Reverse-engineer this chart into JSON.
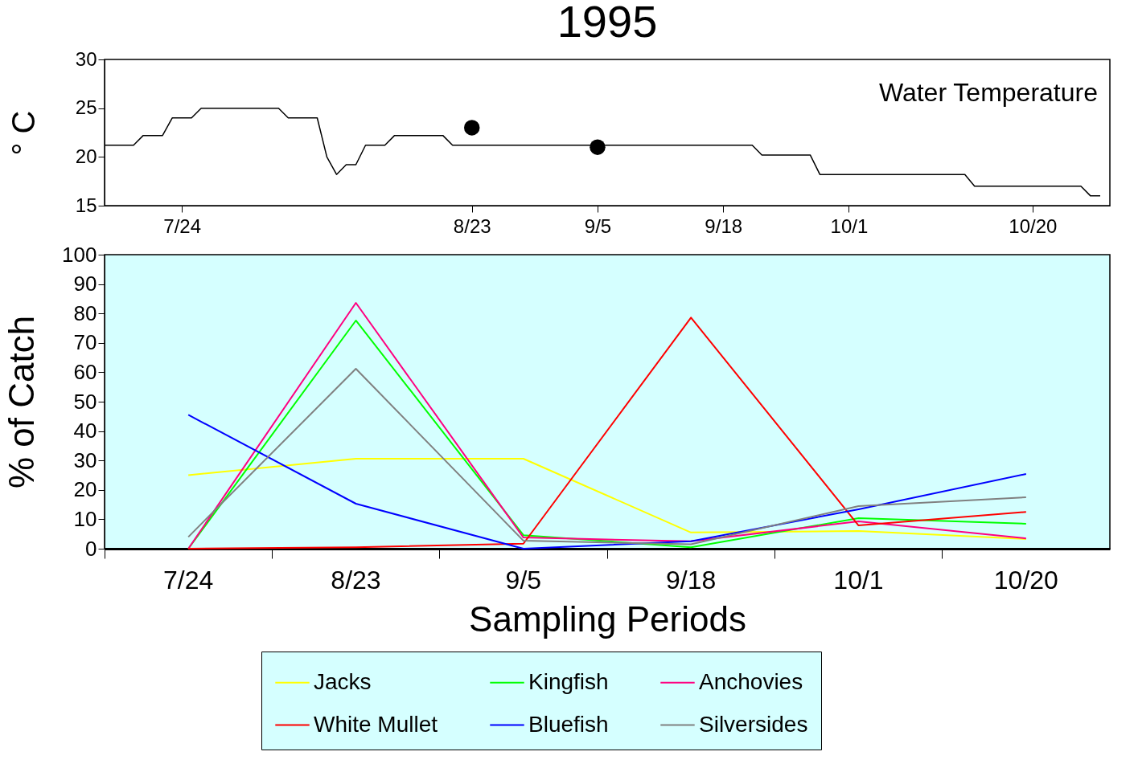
{
  "chart_data": [
    {
      "type": "line",
      "title": "1995",
      "ylabel": "° C",
      "annotations": [
        "Water Temperature"
      ],
      "xlim": [
        "1995-07-16",
        "1995-10-28"
      ],
      "xticks": [
        {
          "value": "1995-07-24",
          "label": "7/24"
        },
        {
          "value": "1995-08-23",
          "label": "8/23"
        },
        {
          "value": "1995-09-05",
          "label": "9/5"
        },
        {
          "value": "1995-09-18",
          "label": "9/18"
        },
        {
          "value": "1995-10-01",
          "label": "10/1"
        },
        {
          "value": "1995-10-20",
          "label": "10/20"
        }
      ],
      "ylim": [
        15,
        30
      ],
      "yticks": [
        15,
        20,
        25,
        30
      ],
      "grid": false,
      "legend": false,
      "series": [
        {
          "type": "line",
          "color": "#000000",
          "x": [
            "1995-07-16",
            "1995-07-19",
            "1995-07-20",
            "1995-07-22",
            "1995-07-23",
            "1995-07-25",
            "1995-07-26",
            "1995-08-03",
            "1995-08-04",
            "1995-08-07",
            "1995-08-08",
            "1995-08-09",
            "1995-08-10",
            "1995-08-11",
            "1995-08-12",
            "1995-08-14",
            "1995-08-15",
            "1995-08-20",
            "1995-08-21",
            "1995-09-21",
            "1995-09-22",
            "1995-09-27",
            "1995-09-28",
            "1995-10-13",
            "1995-10-14",
            "1995-10-25",
            "1995-10-26",
            "1995-10-27"
          ],
          "values": [
            21.2,
            21.2,
            22.2,
            22.2,
            24,
            24,
            25,
            25,
            24,
            24,
            20,
            18.2,
            19.2,
            19.2,
            21.2,
            21.2,
            22.2,
            22.2,
            21.2,
            21.2,
            20.2,
            20.2,
            18.2,
            18.2,
            17,
            17,
            16,
            16
          ]
        },
        {
          "type": "scatter",
          "marker": "circle",
          "color": "#000000",
          "x": [
            "1995-08-23",
            "1995-09-05"
          ],
          "values": [
            23,
            21
          ]
        }
      ]
    },
    {
      "type": "line",
      "xlabel": "Sampling Periods",
      "ylabel": "% of Catch",
      "categories": [
        "7/24",
        "8/23",
        "9/5",
        "9/18",
        "10/1",
        "10/20"
      ],
      "ylim": [
        0,
        100
      ],
      "yticks": [
        0,
        10,
        20,
        30,
        40,
        50,
        60,
        70,
        80,
        90,
        100
      ],
      "grid": false,
      "legend": "bottom",
      "series": [
        {
          "name": "Jacks",
          "color": "#ffff00",
          "values": [
            25,
            30.6,
            30.6,
            5.5,
            6,
            3.3
          ]
        },
        {
          "name": "Kingfish",
          "color": "#00ff00",
          "values": [
            0,
            77.6,
            4.6,
            0.5,
            10.4,
            8.5
          ]
        },
        {
          "name": "Anchovies",
          "color": "#ff0080",
          "values": [
            0,
            83.6,
            3.8,
            2.5,
            9.3,
            3.5
          ]
        },
        {
          "name": "White Mullet",
          "color": "#ff0000",
          "values": [
            0,
            0.5,
            1.7,
            78.6,
            7.9,
            12.5
          ]
        },
        {
          "name": "Bluefish",
          "color": "#0000ff",
          "values": [
            45.5,
            15.3,
            0,
            2.5,
            13.4,
            25.4
          ]
        },
        {
          "name": "Silversides",
          "color": "#808080",
          "values": [
            4,
            61.2,
            2.7,
            1.5,
            14.5,
            17.5
          ]
        }
      ]
    }
  ]
}
